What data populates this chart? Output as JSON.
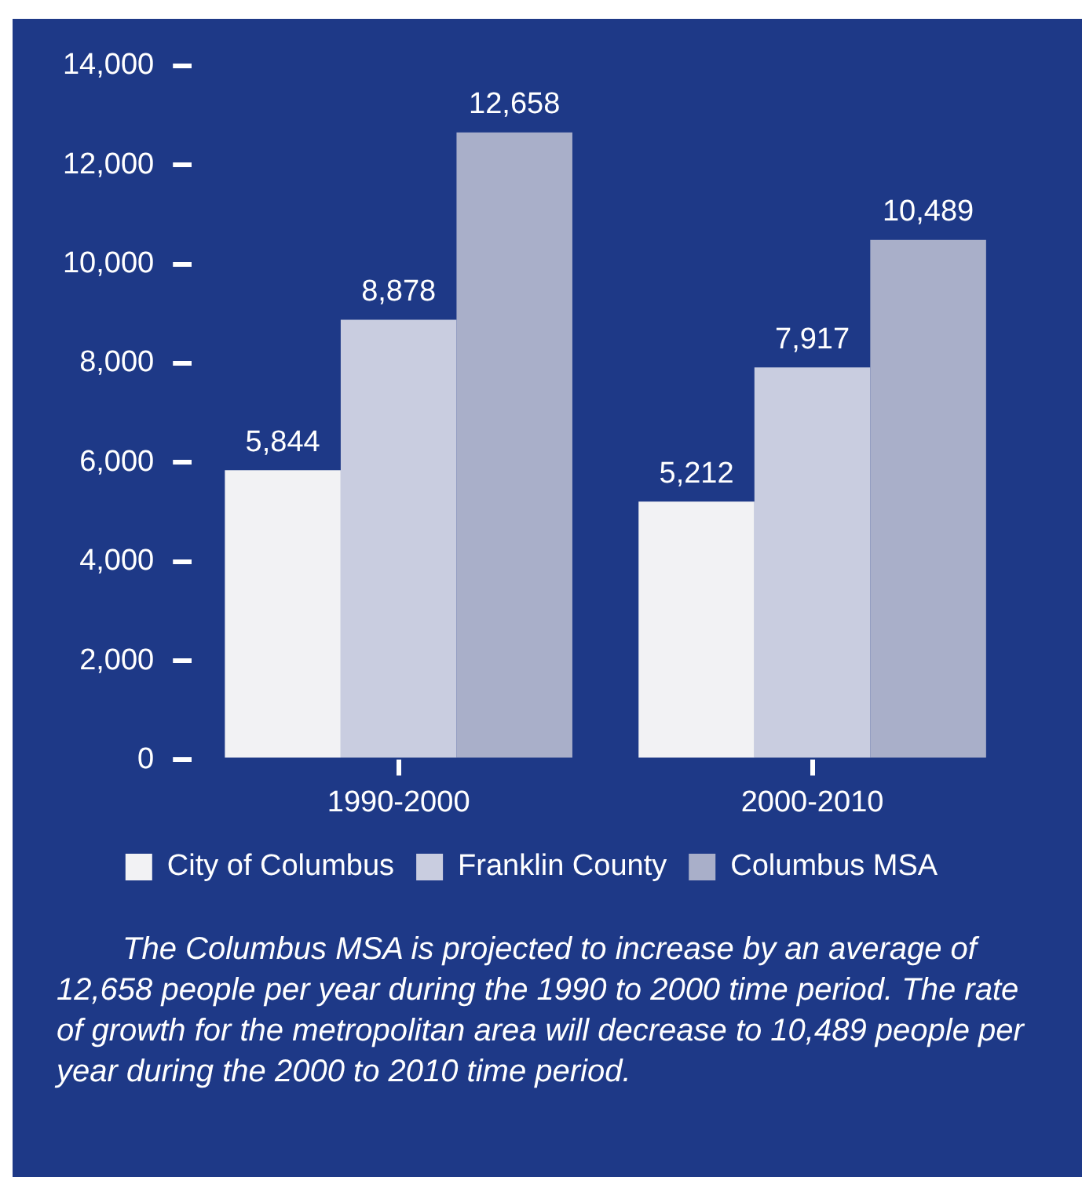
{
  "chart_data": {
    "type": "bar",
    "categories": [
      "1990-2000",
      "2000-2010"
    ],
    "series": [
      {
        "name": "City of Columbus",
        "color": "#f2f2f4",
        "values": [
          5844,
          5212
        ],
        "value_labels": [
          "5,844",
          "5,212"
        ]
      },
      {
        "name": "Franklin County",
        "color": "#c9cde0",
        "values": [
          8878,
          7917
        ],
        "value_labels": [
          "8,878",
          "7,917"
        ]
      },
      {
        "name": "Columbus MSA",
        "color": "#a9afc9",
        "values": [
          12658,
          10489
        ],
        "value_labels": [
          "12,658",
          "10,489"
        ]
      }
    ],
    "ylim": [
      0,
      14000
    ],
    "yticks": [
      {
        "value": 0,
        "label": "0"
      },
      {
        "value": 2000,
        "label": "2,000"
      },
      {
        "value": 4000,
        "label": "4,000"
      },
      {
        "value": 6000,
        "label": "6,000"
      },
      {
        "value": 8000,
        "label": "8,000"
      },
      {
        "value": 10000,
        "label": "10,000"
      },
      {
        "value": 12000,
        "label": "12,000"
      },
      {
        "value": 14000,
        "label": "14,000"
      }
    ],
    "grid": false,
    "legend": "bottom",
    "annotations": [
      "The Columbus MSA is projected to increase by an average of 12,658 people per year during the 1990 to 2000 time period. The rate of growth for the metropolitan area will decrease to 10,489 people per year during the 2000 to 2010 time period."
    ]
  }
}
